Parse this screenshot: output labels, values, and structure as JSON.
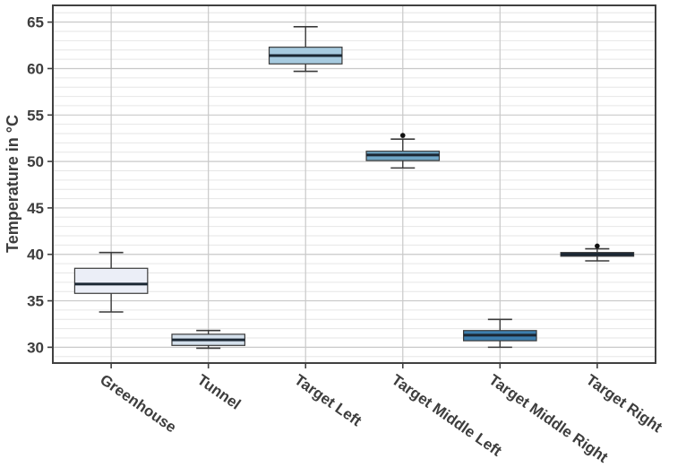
{
  "chart_data": {
    "type": "boxplot",
    "title": "",
    "xlabel": "",
    "ylabel": "Temperature in °C",
    "categories": [
      "Greenhouse",
      "Tunnel",
      "Target Left",
      "Target Middle Left",
      "Target Middle Right",
      "Target Right"
    ],
    "y_ticks": [
      30,
      35,
      40,
      45,
      50,
      55,
      60,
      65
    ],
    "ylim": [
      28.3,
      66.8
    ],
    "grid": {
      "major_step": 5,
      "minor_step": 1,
      "minor_on": true,
      "vertical_major_at_categories": true
    },
    "legend": "none",
    "series": [
      {
        "category": "Greenhouse",
        "min": 33.8,
        "q1": 35.8,
        "median": 36.8,
        "q3": 38.5,
        "max": 40.2,
        "outliers": [],
        "fill": "#EBEEF7"
      },
      {
        "category": "Tunnel",
        "min": 29.9,
        "q1": 30.2,
        "median": 30.8,
        "q3": 31.4,
        "max": 31.8,
        "outliers": [],
        "fill": "#D4E0EC"
      },
      {
        "category": "Target Left",
        "min": 59.7,
        "q1": 60.5,
        "median": 61.4,
        "q3": 62.3,
        "max": 64.5,
        "outliers": [],
        "fill": "#A6CADF"
      },
      {
        "category": "Target Middle Left",
        "min": 49.3,
        "q1": 50.1,
        "median": 50.7,
        "q3": 51.1,
        "max": 52.4,
        "outliers": [
          52.8
        ],
        "fill": "#6FA7C7"
      },
      {
        "category": "Target Middle Right",
        "min": 30.0,
        "q1": 30.7,
        "median": 31.3,
        "q3": 31.8,
        "max": 33.0,
        "outliers": [],
        "fill": "#3D7EAE"
      },
      {
        "category": "Target Right",
        "min": 39.3,
        "q1": 39.8,
        "median": 40.0,
        "q3": 40.2,
        "max": 40.6,
        "outliers": [
          40.9
        ],
        "fill": "#283A4A"
      }
    ],
    "style": {
      "panel_border_color": "#404040",
      "major_grid_color": "#C9C9C9",
      "minor_grid_color": "#E6E6E6",
      "box_stroke_color": "#3A3A3A",
      "median_color": "#1B2733",
      "whisker_color": "#3A3A3A",
      "outlier_color": "#111111",
      "text_color": "#3D3D3D",
      "background_color": "#FFFFFF",
      "x_label_angle_deg": 35
    }
  }
}
